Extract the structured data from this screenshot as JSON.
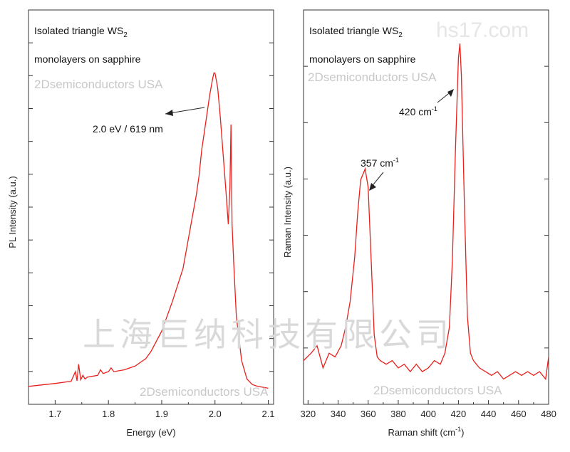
{
  "chart_data": [
    {
      "type": "line",
      "xlabel": "Energy (eV)",
      "ylabel": "PL Intensity (a.u.)",
      "xlim": [
        1.65,
        2.11
      ],
      "ylim": [
        0,
        1
      ],
      "x_ticks": [
        1.7,
        1.8,
        1.9,
        2.0,
        2.1
      ],
      "x_tick_labels": [
        "1.7",
        "1.8",
        "1.9",
        "2.0",
        "2.1"
      ],
      "annotation_lines": [
        "Isolated triangle WS",
        "2",
        "monolayers on sapphire"
      ],
      "peak_annotation": {
        "text": "2.0 eV / 619 nm",
        "x": 2.0,
        "y": 0.85
      },
      "watermarks": [
        "2Dsemiconductors USA",
        "2Dsemiconductors USA"
      ],
      "color": "#e8201c",
      "series": [
        {
          "x": [
            1.65,
            1.7,
            1.73,
            1.738,
            1.741,
            1.744,
            1.748,
            1.752,
            1.756,
            1.76,
            1.78,
            1.785,
            1.79,
            1.8,
            1.805,
            1.81,
            1.83,
            1.85,
            1.86,
            1.87,
            1.88,
            1.9,
            1.92,
            1.94,
            1.955,
            1.965,
            1.97,
            1.975,
            1.98,
            1.99,
            1.995,
            1.998,
            2.0,
            2.005,
            2.01,
            2.02,
            2.025,
            2.028,
            2.03,
            2.032,
            2.035,
            2.04,
            2.05,
            2.06,
            2.07,
            2.08,
            2.1
          ],
          "y": [
            0.01,
            0.018,
            0.024,
            0.05,
            0.025,
            0.07,
            0.028,
            0.04,
            0.03,
            0.035,
            0.04,
            0.055,
            0.045,
            0.05,
            0.06,
            0.05,
            0.055,
            0.065,
            0.075,
            0.085,
            0.105,
            0.16,
            0.24,
            0.33,
            0.45,
            0.53,
            0.58,
            0.65,
            0.7,
            0.8,
            0.84,
            0.86,
            0.86,
            0.82,
            0.74,
            0.55,
            0.45,
            0.55,
            0.72,
            0.45,
            0.35,
            0.2,
            0.08,
            0.03,
            0.015,
            0.01,
            0.005
          ]
        }
      ]
    },
    {
      "type": "line",
      "xlabel": "Raman shift (cm",
      "xlabel_sup": "-1",
      "xlabel_end": ")",
      "ylabel": "Raman Intensity (a.u.)",
      "xlim": [
        317,
        480
      ],
      "ylim": [
        0,
        1
      ],
      "x_ticks": [
        320,
        340,
        360,
        380,
        400,
        420,
        440,
        460,
        480
      ],
      "x_tick_labels": [
        "320",
        "340",
        "360",
        "380",
        "400",
        "420",
        "440",
        "460",
        "480"
      ],
      "annotation_lines": [
        "Isolated triangle WS",
        "2",
        "monolayers on sapphire"
      ],
      "peak_annotations": [
        {
          "text": "357 cm",
          "sup": "-1",
          "x": 357,
          "y": 0.6
        },
        {
          "text": "420 cm",
          "sup": "-1",
          "x": 421,
          "y": 0.94
        }
      ],
      "watermarks": [
        "2Dsemiconductors USA",
        "2Dsemiconductors USA"
      ],
      "color": "#e8201c",
      "series": [
        {
          "x": [
            317,
            322,
            326,
            330,
            334,
            338,
            342,
            345,
            348,
            351,
            353,
            355,
            357,
            358,
            360,
            362,
            364,
            366,
            368,
            372,
            376,
            380,
            384,
            388,
            392,
            396,
            400,
            404,
            408,
            411,
            414,
            416,
            418,
            420,
            421,
            422,
            424,
            426,
            428,
            430,
            434,
            438,
            442,
            446,
            450,
            454,
            458,
            462,
            466,
            470,
            474,
            478,
            480
          ],
          "y": [
            0.08,
            0.1,
            0.12,
            0.06,
            0.1,
            0.09,
            0.12,
            0.17,
            0.24,
            0.36,
            0.48,
            0.57,
            0.59,
            0.6,
            0.55,
            0.35,
            0.15,
            0.09,
            0.08,
            0.07,
            0.08,
            0.06,
            0.07,
            0.05,
            0.07,
            0.05,
            0.06,
            0.08,
            0.07,
            0.1,
            0.17,
            0.35,
            0.65,
            0.9,
            0.94,
            0.85,
            0.5,
            0.2,
            0.1,
            0.08,
            0.06,
            0.05,
            0.04,
            0.05,
            0.03,
            0.04,
            0.05,
            0.04,
            0.05,
            0.04,
            0.05,
            0.03,
            0.09
          ]
        }
      ]
    }
  ],
  "watermark_cn": "上海巨纳科技有限公司",
  "watermark_url": "hs17.com"
}
